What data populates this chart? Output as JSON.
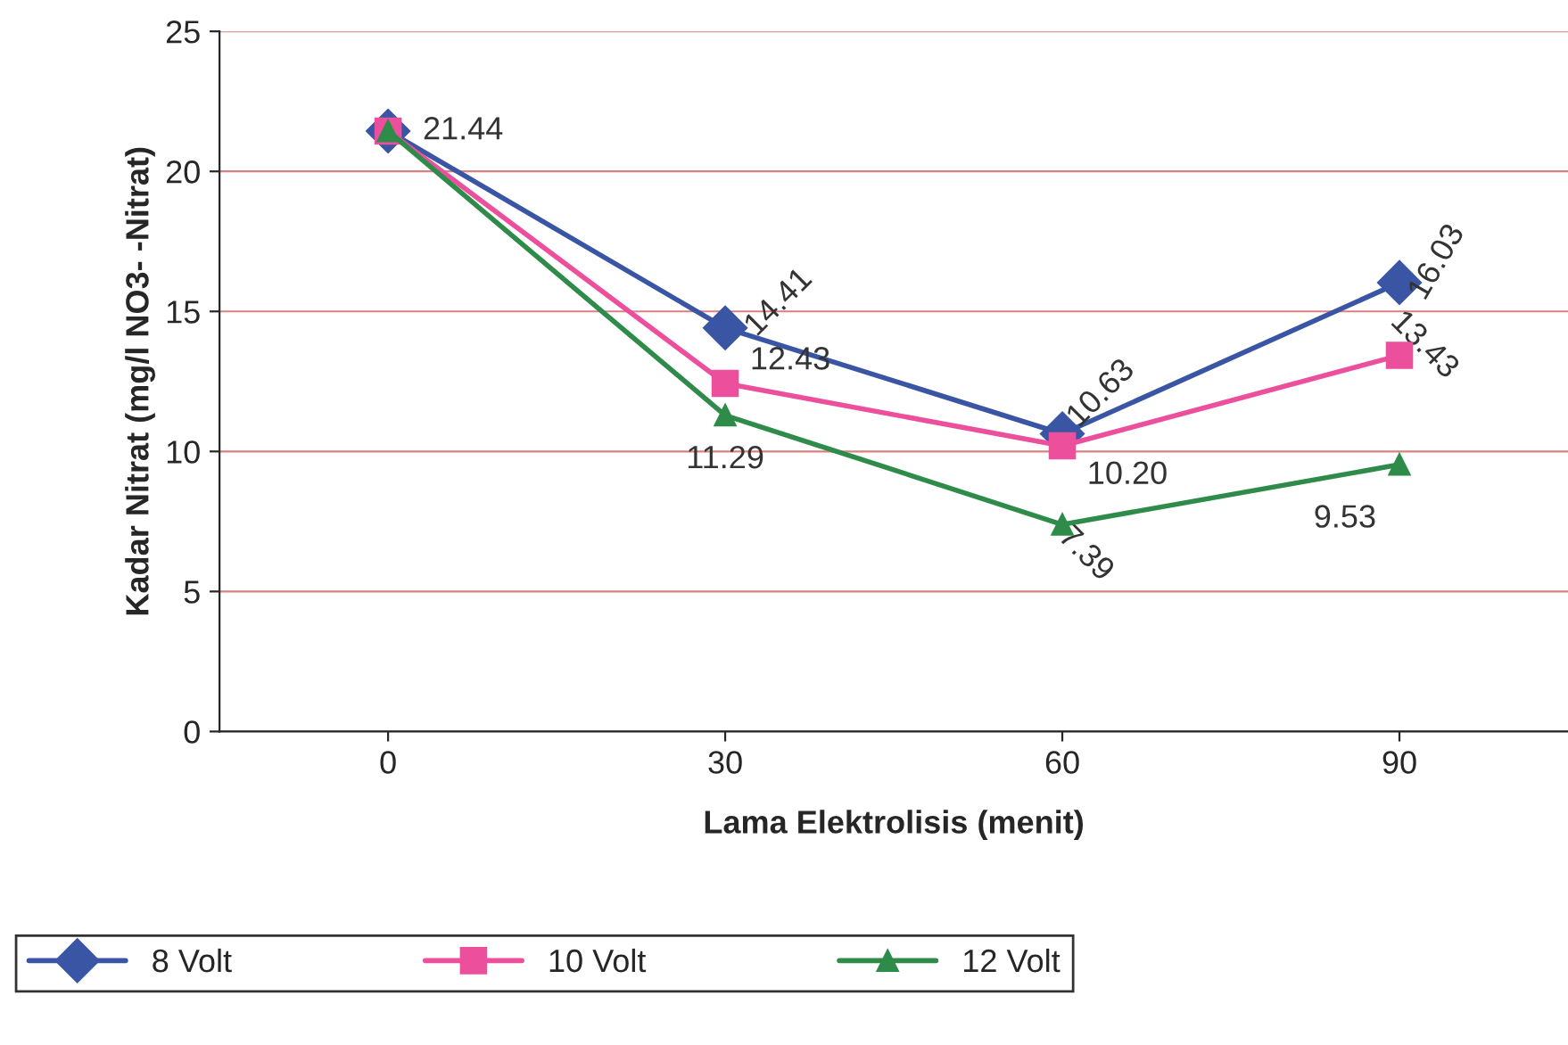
{
  "chart_data": {
    "type": "line",
    "xlabel": "Lama Elektrolisis (menit)",
    "ylabel": "Kadar Nitrat (mg/l NO3- -Nitrat)",
    "categories": [
      "0",
      "30",
      "60",
      "90"
    ],
    "series": [
      {
        "name": "8 Volt",
        "color": "#3a55a4",
        "marker": "diamond",
        "values": [
          21.44,
          14.41,
          10.63,
          16.03
        ],
        "value_labels": [
          "21.44",
          "14.41",
          "10.63",
          "16.03"
        ]
      },
      {
        "name": "10 Volt",
        "color": "#ec4f9b",
        "marker": "square",
        "values": [
          21.44,
          12.43,
          10.2,
          13.43
        ],
        "value_labels": [
          null,
          "12.43",
          "10.20",
          "13.43"
        ]
      },
      {
        "name": "12 Volt",
        "color": "#2e8b4a",
        "marker": "triangle",
        "values": [
          21.44,
          11.29,
          7.39,
          9.53
        ],
        "value_labels": [
          null,
          "11.29",
          "7.39",
          "9.53"
        ]
      }
    ],
    "ylim": [
      0,
      25
    ],
    "yticks": [
      0,
      5,
      10,
      15,
      20,
      25
    ],
    "grid": "y",
    "legend": "bottom",
    "line_style": "solid"
  }
}
